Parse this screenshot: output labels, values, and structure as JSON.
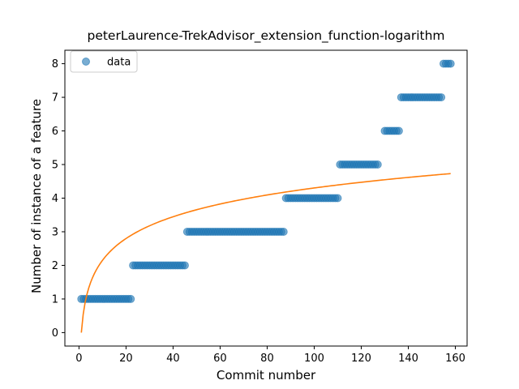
{
  "chart_data": {
    "type": "scatter",
    "title": "peterLaurence-TrekAdvisor_extension_function-logarithm",
    "xlabel": "Commit number",
    "ylabel": "Number of instance of a feature",
    "xlim": [
      -6,
      165
    ],
    "ylim": [
      -0.4,
      8.4
    ],
    "xticks": [
      0,
      20,
      40,
      60,
      80,
      100,
      120,
      140,
      160
    ],
    "yticks": [
      0,
      1,
      2,
      3,
      4,
      5,
      6,
      7,
      8
    ],
    "grid": false,
    "legend": {
      "position": "top-left",
      "entries": [
        "data"
      ]
    },
    "colors": {
      "data": "#1f77b4",
      "fit": "#ff7f0e"
    },
    "scatter_series": {
      "name": "data",
      "segments": [
        {
          "y": 1,
          "x_start": 1,
          "x_end": 22
        },
        {
          "y": 2,
          "x_start": 23,
          "x_end": 45
        },
        {
          "y": 3,
          "x_start": 46,
          "x_end": 87
        },
        {
          "y": 4,
          "x_start": 88,
          "x_end": 110
        },
        {
          "y": 5,
          "x_start": 111,
          "x_end": 127
        },
        {
          "y": 6,
          "x_start": 130,
          "x_end": 136
        },
        {
          "y": 7,
          "x_start": 137,
          "x_end": 154
        },
        {
          "y": 8,
          "x_start": 155,
          "x_end": 158
        }
      ]
    },
    "fit_series": {
      "model": "logarithm",
      "x_range": [
        1,
        158
      ],
      "points": [
        [
          1,
          0
        ],
        [
          2,
          0.65
        ],
        [
          3,
          1.03
        ],
        [
          5,
          1.49
        ],
        [
          10,
          2.14
        ],
        [
          20,
          2.79
        ],
        [
          30,
          3.17
        ],
        [
          40,
          3.44
        ],
        [
          60,
          3.82
        ],
        [
          80,
          4.09
        ],
        [
          100,
          4.3
        ],
        [
          120,
          4.47
        ],
        [
          140,
          4.62
        ],
        [
          158,
          4.73
        ]
      ]
    }
  }
}
